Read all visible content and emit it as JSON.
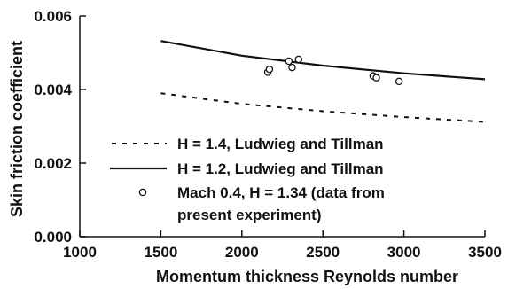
{
  "chart_data": {
    "type": "line",
    "xlabel": "Momentum thickness Reynolds number",
    "ylabel": "Skin friction coefficient",
    "xlim": [
      1000,
      3500
    ],
    "ylim": [
      0.0,
      0.006
    ],
    "x_ticks": [
      1000,
      1500,
      2000,
      2500,
      3000,
      3500
    ],
    "x_tick_labels": [
      "1000",
      "1500",
      "2000",
      "2500",
      "3000",
      "3500"
    ],
    "y_ticks": [
      0.0,
      0.002,
      0.004,
      0.006
    ],
    "y_tick_labels": [
      "0.000",
      "0.002",
      "0.004",
      "0.006"
    ],
    "grid": false,
    "legend_position": "bottom-left",
    "series": [
      {
        "name": "H = 1.4, Ludwieg and Tillman",
        "style": "dotted",
        "marker": "none",
        "color": "#111111",
        "x": [
          1500,
          2000,
          2500,
          3000,
          3500
        ],
        "y": [
          0.0039,
          0.00361,
          0.00341,
          0.00325,
          0.00312
        ]
      },
      {
        "name": "H = 1.2, Ludwieg and Tillman",
        "style": "solid",
        "marker": "none",
        "color": "#111111",
        "x": [
          1500,
          2000,
          2500,
          3000,
          3500
        ],
        "y": [
          0.00532,
          0.00492,
          0.00465,
          0.00444,
          0.00428
        ]
      },
      {
        "name_lines": [
          "Mach 0.4, H = 1.34 (data from",
          "present experiment)"
        ],
        "style": "none",
        "marker": "open-circle",
        "color": "#111111",
        "x": [
          2160,
          2170,
          2290,
          2310,
          2350,
          2810,
          2830,
          2970
        ],
        "y": [
          0.00447,
          0.00455,
          0.00477,
          0.0046,
          0.00482,
          0.00437,
          0.00432,
          0.00422
        ]
      }
    ]
  }
}
